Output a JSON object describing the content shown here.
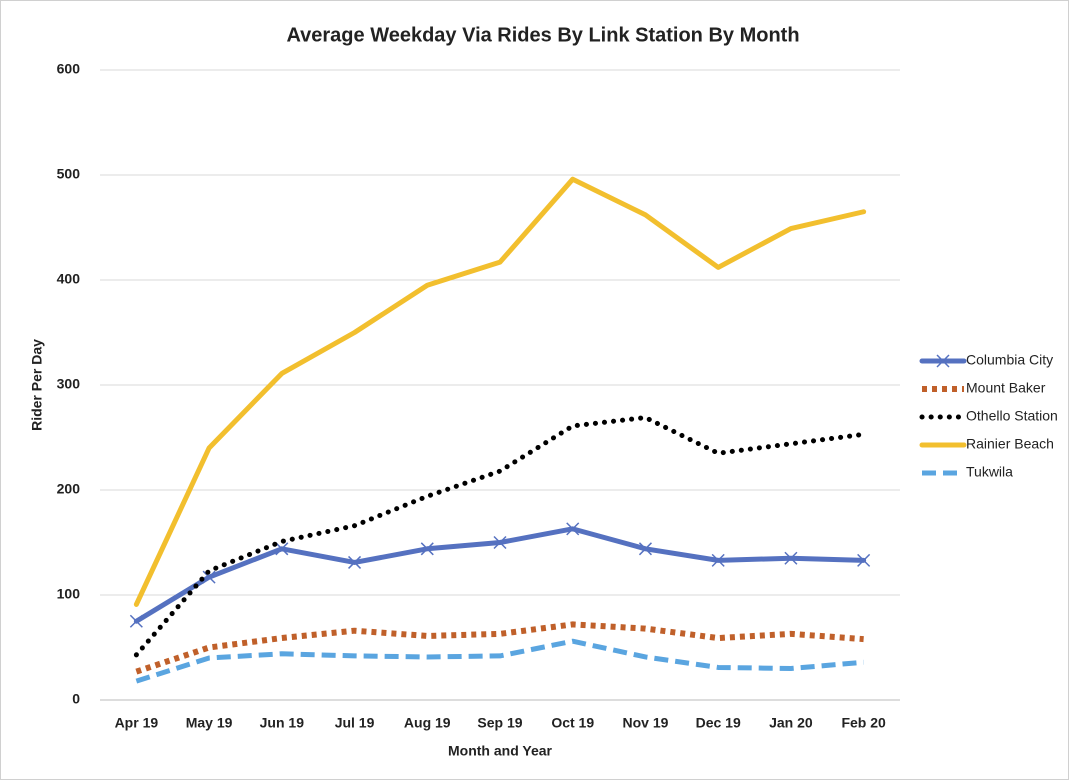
{
  "chart_data": {
    "type": "line",
    "title": "Average Weekday Via Rides By Link Station By Month",
    "x_label": "Month and Year",
    "y_label": "Rider Per Day",
    "categories": [
      "Apr 19",
      "May 19",
      "Jun 19",
      "Jul 19",
      "Aug 19",
      "Sep 19",
      "Oct 19",
      "Nov 19",
      "Dec 19",
      "Jan 20",
      "Feb 20"
    ],
    "series": [
      {
        "name": "Columbia City",
        "color": "#5571c0",
        "dash": "solid",
        "marker": "x",
        "values": [
          75,
          117,
          144,
          131,
          144,
          150,
          163,
          144,
          133,
          135,
          133
        ]
      },
      {
        "name": "Mount Baker",
        "color": "#c0602a",
        "dash": "square-dot",
        "values": [
          27,
          50,
          59,
          66,
          61,
          63,
          72,
          68,
          59,
          63,
          58
        ]
      },
      {
        "name": "Othello Station",
        "color": "#000000",
        "dash": "dot",
        "values": [
          43,
          123,
          151,
          166,
          194,
          218,
          261,
          269,
          235,
          244,
          253
        ]
      },
      {
        "name": "Rainier Beach",
        "color": "#f2bf2e",
        "dash": "solid",
        "values": [
          91,
          240,
          311,
          350,
          395,
          417,
          496,
          462,
          412,
          449,
          465
        ]
      },
      {
        "name": "Tukwila",
        "color": "#5aa5e0",
        "dash": "dash",
        "values": [
          18,
          40,
          44,
          42,
          41,
          42,
          56,
          41,
          31,
          30,
          36
        ]
      }
    ],
    "ylim": [
      0,
      600
    ],
    "yticks": [
      0,
      100,
      200,
      300,
      400,
      500,
      600
    ],
    "grid": true,
    "legend": "right"
  }
}
